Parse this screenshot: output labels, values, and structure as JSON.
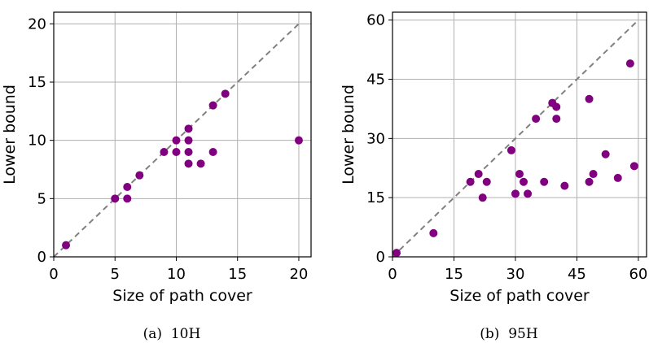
{
  "chart_data": [
    {
      "type": "scatter",
      "caption": "(a)  10H",
      "xlabel": "Size of path cover",
      "ylabel": "Lower bound",
      "xlim": [
        0,
        21
      ],
      "ylim": [
        0,
        21
      ],
      "xticks": [
        0,
        5,
        10,
        15,
        20
      ],
      "yticks": [
        0,
        5,
        10,
        15,
        20
      ],
      "grid": true,
      "reference_line": "y = x (dashed)",
      "series": [
        {
          "color": "#800080",
          "points": [
            [
              1,
              1
            ],
            [
              5,
              5
            ],
            [
              6,
              5
            ],
            [
              6,
              6
            ],
            [
              7,
              7
            ],
            [
              9,
              9
            ],
            [
              10,
              9
            ],
            [
              10,
              10
            ],
            [
              11,
              8
            ],
            [
              11,
              9
            ],
            [
              11,
              10
            ],
            [
              11,
              11
            ],
            [
              12,
              8
            ],
            [
              13,
              9
            ],
            [
              13,
              13
            ],
            [
              14,
              14
            ],
            [
              20,
              10
            ]
          ]
        }
      ]
    },
    {
      "type": "scatter",
      "caption": "(b)  95H",
      "xlabel": "Size of path cover",
      "ylabel": "Lower bound",
      "xlim": [
        0,
        62
      ],
      "ylim": [
        0,
        62
      ],
      "xticks": [
        0,
        15,
        30,
        45,
        60
      ],
      "yticks": [
        0,
        15,
        30,
        45,
        60
      ],
      "grid": true,
      "reference_line": "y = x (dashed)",
      "series": [
        {
          "color": "#800080",
          "points": [
            [
              1,
              1
            ],
            [
              10,
              6
            ],
            [
              19,
              19
            ],
            [
              21,
              21
            ],
            [
              22,
              15
            ],
            [
              23,
              19
            ],
            [
              29,
              27
            ],
            [
              30,
              16
            ],
            [
              31,
              21
            ],
            [
              32,
              19
            ],
            [
              33,
              16
            ],
            [
              35,
              35
            ],
            [
              37,
              19
            ],
            [
              39,
              39
            ],
            [
              40,
              38
            ],
            [
              40,
              35
            ],
            [
              42,
              18
            ],
            [
              48,
              19
            ],
            [
              48,
              40
            ],
            [
              49,
              21
            ],
            [
              52,
              26
            ],
            [
              55,
              20
            ],
            [
              58,
              49
            ],
            [
              59,
              23
            ]
          ]
        }
      ]
    }
  ]
}
